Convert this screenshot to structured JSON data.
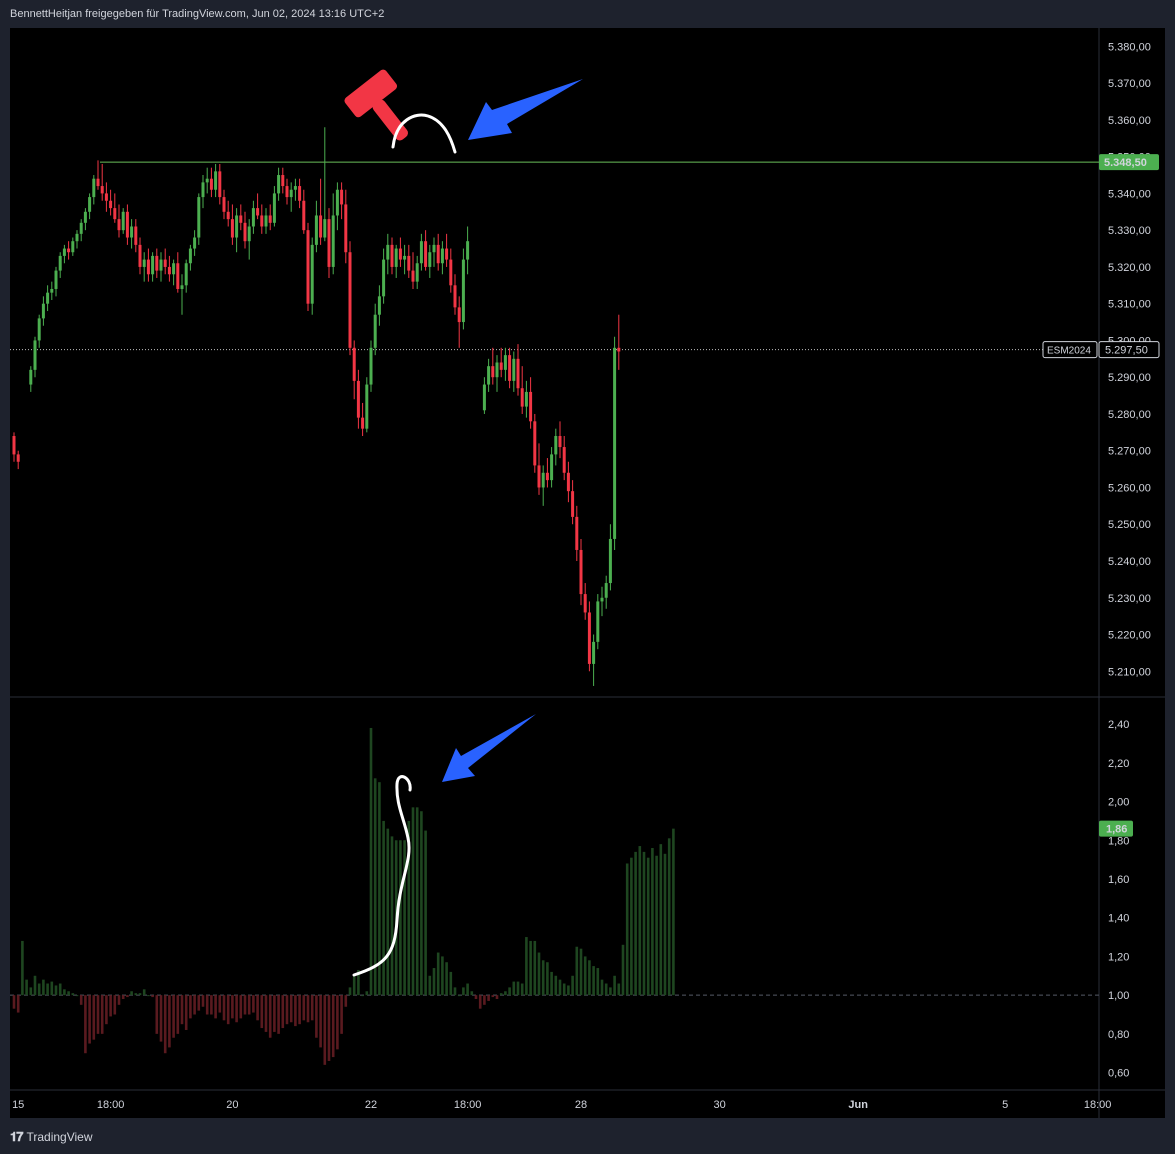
{
  "header": {
    "text": "BennettHeitjan freigegeben für TradingView.com, Jun 02, 2024 13:16 UTC+2"
  },
  "footer": {
    "logo_text": "TradingView"
  },
  "colors": {
    "background": "#000000",
    "panel_border": "#2a2e39",
    "up": "#4caf50",
    "down": "#f23645",
    "volume_up": "#1e4620",
    "volume_down": "#5a1a1f",
    "resistance_line": "#6abe5a",
    "current_price_line": "#bfbfbf",
    "annotation_arrow": "#2962ff",
    "gavel": "#f23645"
  },
  "chart_data": [
    {
      "type": "candlestick",
      "symbol_label": "ESM2024",
      "price_label": "5.297,50",
      "resistance_label": "5.348,50",
      "resistance_level": 5348.5,
      "current_price": 5297.5,
      "ylim": [
        5203,
        5385
      ],
      "y_ticks": [
        "5.380,00",
        "5.370,00",
        "5.360,00",
        "5.350,00",
        "5.340,00",
        "5.330,00",
        "5.320,00",
        "5.310,00",
        "5.300,00",
        "5.290,00",
        "5.280,00",
        "5.270,00",
        "5.260,00",
        "5.250,00",
        "5.240,00",
        "5.230,00",
        "5.220,00",
        "5.210,00"
      ],
      "y_tick_values": [
        5380,
        5370,
        5360,
        5350,
        5340,
        5330,
        5320,
        5310,
        5300,
        5290,
        5280,
        5270,
        5260,
        5250,
        5240,
        5230,
        5220,
        5210
      ],
      "x_ticks": [
        "15",
        "18:00",
        "20",
        "22",
        "18:00",
        "28",
        "30",
        "Jun",
        "5",
        "18:00"
      ],
      "x_tick_index": [
        1,
        23,
        52,
        85,
        108,
        135,
        168,
        201,
        236,
        258
      ],
      "candles": [
        [
          5274,
          5275,
          5267,
          5269
        ],
        [
          5269,
          5270,
          5265,
          5267
        ],
        null,
        null,
        [
          5288,
          5293,
          5286,
          5292
        ],
        [
          5292,
          5301,
          5290,
          5300
        ],
        [
          5300,
          5307,
          5298,
          5306
        ],
        [
          5306,
          5312,
          5304,
          5310
        ],
        [
          5310,
          5315,
          5308,
          5313
        ],
        [
          5313,
          5316,
          5311,
          5314
        ],
        [
          5314,
          5320,
          5312,
          5319
        ],
        [
          5319,
          5324,
          5317,
          5323
        ],
        [
          5323,
          5326,
          5321,
          5325
        ],
        [
          5325,
          5327,
          5322,
          5324
        ],
        [
          5324,
          5328,
          5323,
          5327
        ],
        [
          5327,
          5330,
          5325,
          5329
        ],
        [
          5329,
          5333,
          5327,
          5332
        ],
        [
          5332,
          5336,
          5330,
          5335
        ],
        [
          5335,
          5340,
          5333,
          5339
        ],
        [
          5339,
          5345,
          5337,
          5344
        ],
        [
          5344,
          5349,
          5341,
          5342
        ],
        [
          5342,
          5348,
          5338,
          5340
        ],
        [
          5340,
          5343,
          5335,
          5338
        ],
        [
          5338,
          5341,
          5334,
          5336
        ],
        [
          5336,
          5340,
          5332,
          5333
        ],
        [
          5333,
          5337,
          5328,
          5330
        ],
        [
          5330,
          5336,
          5329,
          5335
        ],
        [
          5335,
          5337,
          5326,
          5328
        ],
        [
          5328,
          5333,
          5325,
          5331
        ],
        [
          5331,
          5333,
          5324,
          5326
        ],
        [
          5326,
          5328,
          5318,
          5320
        ],
        [
          5320,
          5324,
          5316,
          5322
        ],
        [
          5322,
          5325,
          5316,
          5318
        ],
        [
          5318,
          5324,
          5316,
          5323
        ],
        [
          5323,
          5325,
          5317,
          5319
        ],
        [
          5319,
          5324,
          5316,
          5322
        ],
        [
          5322,
          5325,
          5318,
          5320
        ],
        [
          5320,
          5323,
          5316,
          5318
        ],
        [
          5318,
          5322,
          5315,
          5321
        ],
        [
          5321,
          5324,
          5313,
          5314
        ],
        [
          5314,
          5318,
          5307,
          5315
        ],
        [
          5315,
          5322,
          5313,
          5321
        ],
        [
          5321,
          5326,
          5319,
          5325
        ],
        [
          5325,
          5330,
          5323,
          5328
        ],
        [
          5328,
          5340,
          5326,
          5339
        ],
        [
          5339,
          5345,
          5336,
          5343
        ],
        [
          5343,
          5347,
          5340,
          5344
        ],
        [
          5344,
          5347,
          5339,
          5341
        ],
        [
          5341,
          5348,
          5339,
          5346
        ],
        [
          5346,
          5348,
          5337,
          5339
        ],
        [
          5339,
          5341,
          5333,
          5335
        ],
        [
          5335,
          5338,
          5331,
          5333
        ],
        [
          5333,
          5337,
          5326,
          5328
        ],
        [
          5328,
          5336,
          5324,
          5334
        ],
        [
          5334,
          5337,
          5330,
          5332
        ],
        [
          5332,
          5335,
          5325,
          5327
        ],
        [
          5327,
          5333,
          5322,
          5331
        ],
        [
          5331,
          5338,
          5329,
          5336
        ],
        [
          5336,
          5340,
          5333,
          5334
        ],
        [
          5334,
          5337,
          5329,
          5331
        ],
        [
          5331,
          5336,
          5329,
          5334
        ],
        [
          5334,
          5337,
          5330,
          5332
        ],
        [
          5332,
          5342,
          5331,
          5340
        ],
        [
          5340,
          5347,
          5338,
          5345
        ],
        [
          5345,
          5347,
          5340,
          5342
        ],
        [
          5342,
          5344,
          5337,
          5339
        ],
        [
          5339,
          5343,
          5335,
          5341
        ],
        [
          5341,
          5344,
          5338,
          5342
        ],
        [
          5342,
          5344,
          5336,
          5338
        ],
        [
          5338,
          5341,
          5329,
          5330
        ],
        [
          5330,
          5332,
          5308,
          5310
        ],
        [
          5310,
          5328,
          5307,
          5326
        ],
        [
          5326,
          5338,
          5324,
          5334
        ],
        [
          5334,
          5344,
          5326,
          5328
        ],
        [
          5328,
          5358,
          5327,
          5333
        ],
        [
          5333,
          5336,
          5317,
          5320
        ],
        [
          5320,
          5340,
          5318,
          5334
        ],
        [
          5334,
          5343,
          5330,
          5341
        ],
        [
          5341,
          5343,
          5333,
          5337
        ],
        [
          5337,
          5341,
          5321,
          5324
        ],
        [
          5324,
          5327,
          5296,
          5298
        ],
        [
          5298,
          5300,
          5284,
          5289
        ],
        [
          5289,
          5292,
          5276,
          5279
        ],
        [
          5279,
          5283,
          5274,
          5276
        ],
        [
          5276,
          5290,
          5275,
          5288
        ],
        [
          5288,
          5300,
          5286,
          5298
        ],
        [
          5298,
          5310,
          5296,
          5307
        ],
        [
          5307,
          5315,
          5304,
          5312
        ],
        [
          5312,
          5325,
          5310,
          5322
        ],
        [
          5322,
          5329,
          5318,
          5326
        ],
        [
          5326,
          5328,
          5318,
          5320
        ],
        [
          5320,
          5326,
          5317,
          5325
        ],
        [
          5325,
          5328,
          5320,
          5322
        ],
        [
          5322,
          5326,
          5318,
          5323
        ],
        [
          5323,
          5326,
          5317,
          5319
        ],
        [
          5319,
          5324,
          5314,
          5316
        ],
        [
          5316,
          5323,
          5314,
          5321
        ],
        [
          5321,
          5329,
          5319,
          5327
        ],
        [
          5327,
          5330,
          5319,
          5320
        ],
        [
          5320,
          5326,
          5317,
          5324
        ],
        [
          5324,
          5328,
          5320,
          5326
        ],
        [
          5326,
          5329,
          5319,
          5321
        ],
        [
          5321,
          5327,
          5318,
          5325
        ],
        [
          5325,
          5329,
          5320,
          5322
        ],
        [
          5322,
          5325,
          5313,
          5315
        ],
        [
          5315,
          5318,
          5307,
          5309
        ],
        [
          5309,
          5312,
          5298,
          5305
        ],
        [
          5305,
          5325,
          5303,
          5322
        ],
        [
          5322,
          5331,
          5318,
          5327
        ],
        null,
        null,
        null,
        [
          5281,
          5290,
          5280,
          5288
        ],
        [
          5288,
          5295,
          5286,
          5293
        ],
        [
          5293,
          5298,
          5288,
          5290
        ],
        [
          5290,
          5296,
          5286,
          5294
        ],
        [
          5294,
          5298,
          5290,
          5292
        ],
        [
          5292,
          5298,
          5289,
          5296
        ],
        [
          5296,
          5298,
          5287,
          5289
        ],
        [
          5289,
          5297,
          5286,
          5295
        ],
        [
          5295,
          5299,
          5285,
          5287
        ],
        [
          5287,
          5293,
          5280,
          5282
        ],
        [
          5282,
          5289,
          5279,
          5286
        ],
        [
          5286,
          5290,
          5276,
          5278
        ],
        [
          5278,
          5280,
          5264,
          5266
        ],
        [
          5266,
          5272,
          5258,
          5260
        ],
        [
          5260,
          5266,
          5255,
          5264
        ],
        [
          5264,
          5268,
          5260,
          5262
        ],
        [
          5262,
          5271,
          5260,
          5269
        ],
        [
          5269,
          5276,
          5266,
          5274
        ],
        [
          5274,
          5278,
          5268,
          5271
        ],
        [
          5271,
          5274,
          5262,
          5264
        ],
        [
          5264,
          5267,
          5256,
          5259
        ],
        [
          5259,
          5262,
          5250,
          5252
        ],
        [
          5252,
          5255,
          5240,
          5243
        ],
        [
          5243,
          5246,
          5228,
          5231
        ],
        [
          5231,
          5234,
          5224,
          5226
        ],
        [
          5226,
          5229,
          5210,
          5212
        ],
        [
          5212,
          5220,
          5206,
          5218
        ],
        [
          5218,
          5231,
          5216,
          5229
        ],
        [
          5229,
          5233,
          5225,
          5230
        ],
        [
          5230,
          5236,
          5227,
          5234
        ],
        [
          5234,
          5250,
          5232,
          5246
        ],
        [
          5246,
          5301,
          5243,
          5298
        ],
        [
          5298,
          5307,
          5292,
          5297
        ]
      ]
    },
    {
      "type": "bar",
      "name": "volume_ratio",
      "price_label": "1,86",
      "baseline": 1.0,
      "ylim": [
        0.51,
        2.54
      ],
      "y_ticks": [
        "2,40",
        "2,20",
        "2,00",
        "1,80",
        "1,60",
        "1,40",
        "1,20",
        "1,00",
        "0,80",
        "0,60"
      ],
      "y_tick_values": [
        2.4,
        2.2,
        2.0,
        1.8,
        1.6,
        1.4,
        1.2,
        1.0,
        0.8,
        0.6
      ],
      "values": [
        0.93,
        0.91,
        1.28,
        1.08,
        1.04,
        1.1,
        1.06,
        1.08,
        1.06,
        1.07,
        1.05,
        1.06,
        1.03,
        1.02,
        1.01,
        1.0,
        0.95,
        0.7,
        0.75,
        0.77,
        0.8,
        0.8,
        0.85,
        0.89,
        0.9,
        0.95,
        0.98,
        0.99,
        1.02,
        1.01,
        1.01,
        1.03,
        1.0,
        0.99,
        0.8,
        0.76,
        0.7,
        0.73,
        0.78,
        0.8,
        0.85,
        0.82,
        0.88,
        0.9,
        0.92,
        0.94,
        0.9,
        0.9,
        0.88,
        0.91,
        0.87,
        0.85,
        0.88,
        0.86,
        0.88,
        0.9,
        0.9,
        0.91,
        0.87,
        0.83,
        0.81,
        0.78,
        0.81,
        0.8,
        0.83,
        0.85,
        0.86,
        0.84,
        0.85,
        0.87,
        0.86,
        0.87,
        0.78,
        0.73,
        0.64,
        0.66,
        0.68,
        0.72,
        0.8,
        0.94,
        1.04,
        1.1,
        1.13,
        1.0,
        1.02,
        2.38,
        2.12,
        2.1,
        1.9,
        1.86,
        1.82,
        1.8,
        1.8,
        1.8,
        1.9,
        1.97,
        1.97,
        1.95,
        1.85,
        1.1,
        1.14,
        1.22,
        1.2,
        1.17,
        1.12,
        1.04,
        1.0,
        1.04,
        1.06,
        1.02,
        0.98,
        0.93,
        0.95,
        0.97,
        0.99,
        0.98,
        1.01,
        1.02,
        1.04,
        1.07,
        1.07,
        1.06,
        1.3,
        1.28,
        1.28,
        1.22,
        1.18,
        1.17,
        1.12,
        1.1,
        1.08,
        1.06,
        1.05,
        1.1,
        1.25,
        1.24,
        1.2,
        1.18,
        1.15,
        1.14,
        1.08,
        1.06,
        1.04,
        1.1,
        1.06,
        1.26,
        1.68,
        1.71,
        1.74,
        1.77,
        1.74,
        1.71,
        1.76,
        1.72,
        1.78,
        1.73,
        1.81,
        1.86
      ]
    }
  ]
}
